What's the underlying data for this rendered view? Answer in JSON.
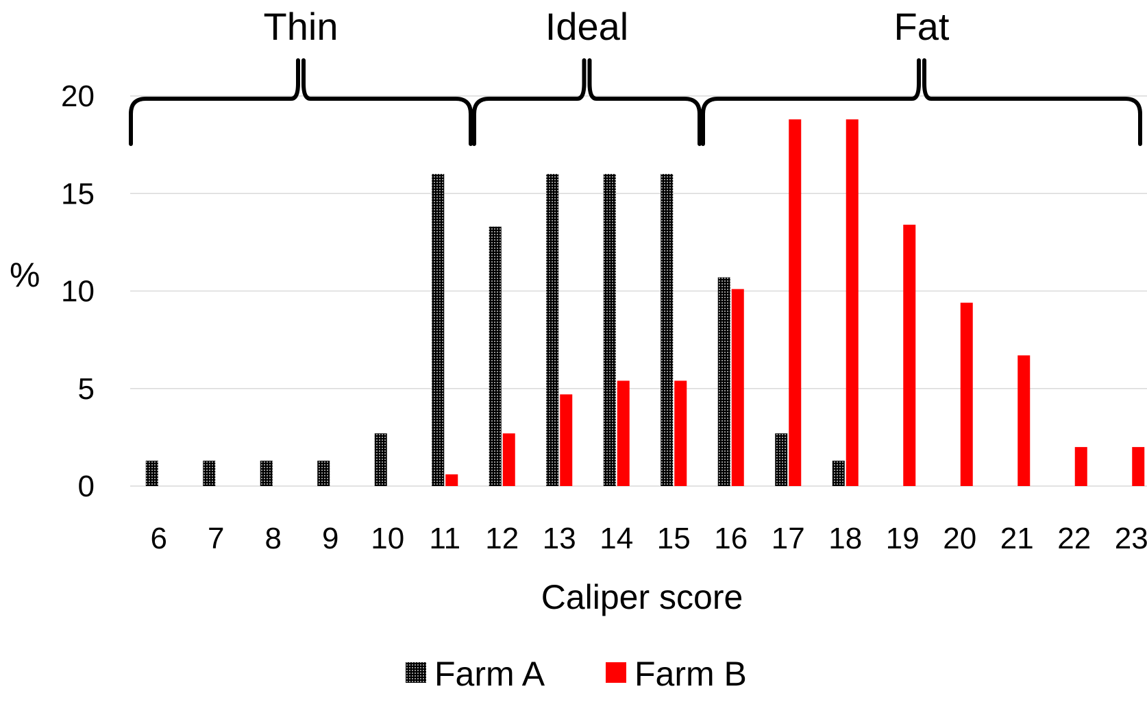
{
  "chart_data": {
    "type": "bar",
    "title": "",
    "xlabel": "Caliper score",
    "ylabel": "%",
    "ylim": [
      0,
      20
    ],
    "yticks": [
      0,
      5,
      10,
      15,
      20
    ],
    "grid": true,
    "legend_position": "bottom",
    "categories": [
      "6",
      "7",
      "8",
      "9",
      "10",
      "11",
      "12",
      "13",
      "14",
      "15",
      "16",
      "17",
      "18",
      "19",
      "20",
      "21",
      "22",
      "23"
    ],
    "series": [
      {
        "name": "Farm A",
        "color": "#000000",
        "pattern": "dotted-black",
        "values": [
          1.3,
          1.3,
          1.3,
          1.3,
          2.7,
          16.0,
          13.3,
          16.0,
          16.0,
          16.0,
          10.7,
          2.7,
          1.3,
          0,
          0,
          0,
          0,
          0
        ]
      },
      {
        "name": "Farm B",
        "color": "#ff0000",
        "values": [
          0,
          0,
          0,
          0,
          0,
          0.6,
          2.7,
          4.7,
          5.4,
          5.4,
          10.1,
          18.8,
          18.8,
          13.4,
          9.4,
          6.7,
          2.0,
          2.0
        ]
      }
    ],
    "groups": [
      {
        "label": "Thin",
        "from": "6",
        "to": "11"
      },
      {
        "label": "Ideal",
        "from": "12",
        "to": "15"
      },
      {
        "label": "Fat",
        "from": "16",
        "to": "23"
      }
    ]
  }
}
